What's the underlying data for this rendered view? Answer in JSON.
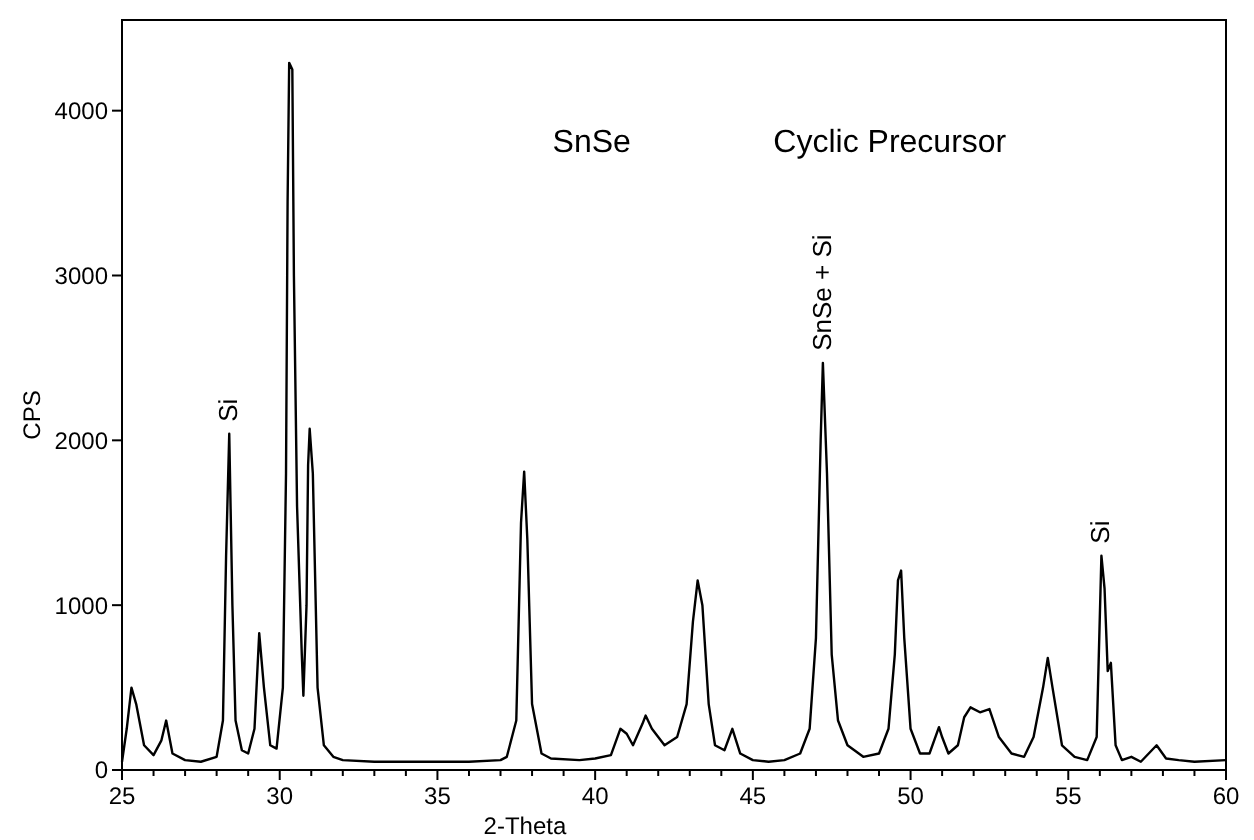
{
  "chart_data": {
    "type": "line",
    "title": "SnSe",
    "subtitle": "Cyclic Precursor",
    "xlabel": "2-Theta",
    "ylabel": "CPS",
    "xlim": [
      25,
      60
    ],
    "ylim": [
      0,
      4550
    ],
    "xticks": [
      25,
      {
        "value": 26,
        "label": null
      },
      {
        "value": 27,
        "label": null
      },
      {
        "value": 28,
        "label": null
      },
      {
        "value": 29,
        "label": null
      },
      30,
      {
        "value": 31,
        "label": null
      },
      {
        "value": 32,
        "label": null
      },
      {
        "value": 33,
        "label": null
      },
      {
        "value": 34,
        "label": null
      },
      35,
      {
        "value": 36,
        "label": null
      },
      {
        "value": 37,
        "label": null
      },
      {
        "value": 38,
        "label": null
      },
      {
        "value": 39,
        "label": null
      },
      40,
      {
        "value": 41,
        "label": null
      },
      {
        "value": 42,
        "label": null
      },
      {
        "value": 43,
        "label": null
      },
      {
        "value": 44,
        "label": null
      },
      45,
      {
        "value": 46,
        "label": null
      },
      {
        "value": 47,
        "label": null
      },
      {
        "value": 48,
        "label": null
      },
      {
        "value": 49,
        "label": null
      },
      50,
      {
        "value": 51,
        "label": null
      },
      {
        "value": 52,
        "label": null
      },
      {
        "value": 53,
        "label": null
      },
      {
        "value": 54,
        "label": null
      },
      55,
      {
        "value": 56,
        "label": null
      },
      {
        "value": 57,
        "label": null
      },
      {
        "value": 58,
        "label": null
      },
      {
        "value": 59,
        "label": null
      },
      60
    ],
    "yticks": [
      0,
      1000,
      2000,
      3000,
      4000
    ],
    "grid": false,
    "marker": "none",
    "line_style": "solid",
    "annotations": [
      {
        "text": "Si",
        "x": 28.4,
        "y": 2040
      },
      {
        "text": "SnSe + Si",
        "x": 47.22,
        "y": 2470
      },
      {
        "text": "Si",
        "x": 56.05,
        "y": 1300
      }
    ],
    "series": [
      {
        "color": "#000000",
        "x": [
          25.0,
          25.15,
          25.3,
          25.45,
          25.7,
          26.0,
          26.25,
          26.4,
          26.6,
          27.0,
          27.5,
          28.0,
          28.2,
          28.3,
          28.4,
          28.5,
          28.6,
          28.8,
          29.0,
          29.2,
          29.35,
          29.5,
          29.7,
          29.9,
          30.1,
          30.2,
          30.25,
          30.3,
          30.4,
          30.45,
          30.55,
          30.7,
          30.75,
          30.85,
          30.9,
          30.95,
          31.05,
          31.2,
          31.4,
          31.7,
          32.0,
          33.0,
          34.0,
          35.0,
          36.0,
          37.0,
          37.2,
          37.5,
          37.65,
          37.75,
          37.85,
          38.0,
          38.3,
          38.6,
          39.5,
          40.0,
          40.5,
          40.8,
          41.0,
          41.2,
          41.5,
          41.6,
          41.8,
          42.2,
          42.6,
          42.9,
          43.1,
          43.25,
          43.4,
          43.6,
          43.8,
          44.1,
          44.35,
          44.6,
          45.0,
          45.5,
          46.0,
          46.5,
          46.8,
          47.0,
          47.15,
          47.22,
          47.35,
          47.5,
          47.7,
          48.0,
          48.5,
          49.0,
          49.3,
          49.5,
          49.6,
          49.7,
          49.8,
          50.0,
          50.3,
          50.6,
          50.9,
          51.0,
          51.2,
          51.5,
          51.7,
          51.9,
          52.2,
          52.5,
          52.8,
          53.2,
          53.6,
          53.9,
          54.2,
          54.35,
          54.5,
          54.8,
          55.2,
          55.6,
          55.9,
          56.05,
          56.15,
          56.25,
          56.35,
          56.5,
          56.7,
          57.0,
          57.3,
          57.8,
          58.1,
          58.5,
          59.0,
          60.0
        ],
        "values": [
          50,
          250,
          500,
          400,
          150,
          90,
          180,
          300,
          100,
          60,
          50,
          80,
          300,
          1300,
          2040,
          1000,
          300,
          120,
          100,
          250,
          830,
          500,
          150,
          130,
          500,
          1800,
          3450,
          4290,
          4250,
          3000,
          1600,
          700,
          450,
          1000,
          1850,
          2070,
          1800,
          500,
          150,
          80,
          60,
          50,
          50,
          50,
          50,
          60,
          80,
          300,
          1500,
          1810,
          1400,
          400,
          100,
          70,
          60,
          70,
          90,
          250,
          220,
          150,
          280,
          330,
          250,
          150,
          200,
          400,
          900,
          1150,
          1000,
          400,
          150,
          120,
          250,
          100,
          60,
          50,
          60,
          100,
          250,
          800,
          2000,
          2470,
          1800,
          700,
          300,
          150,
          80,
          100,
          250,
          700,
          1150,
          1210,
          800,
          250,
          100,
          100,
          260,
          200,
          100,
          150,
          320,
          380,
          350,
          370,
          200,
          100,
          80,
          200,
          500,
          680,
          500,
          150,
          80,
          60,
          200,
          1300,
          1100,
          600,
          650,
          150,
          60,
          80,
          50,
          150,
          70,
          60,
          50,
          60
        ]
      }
    ]
  }
}
